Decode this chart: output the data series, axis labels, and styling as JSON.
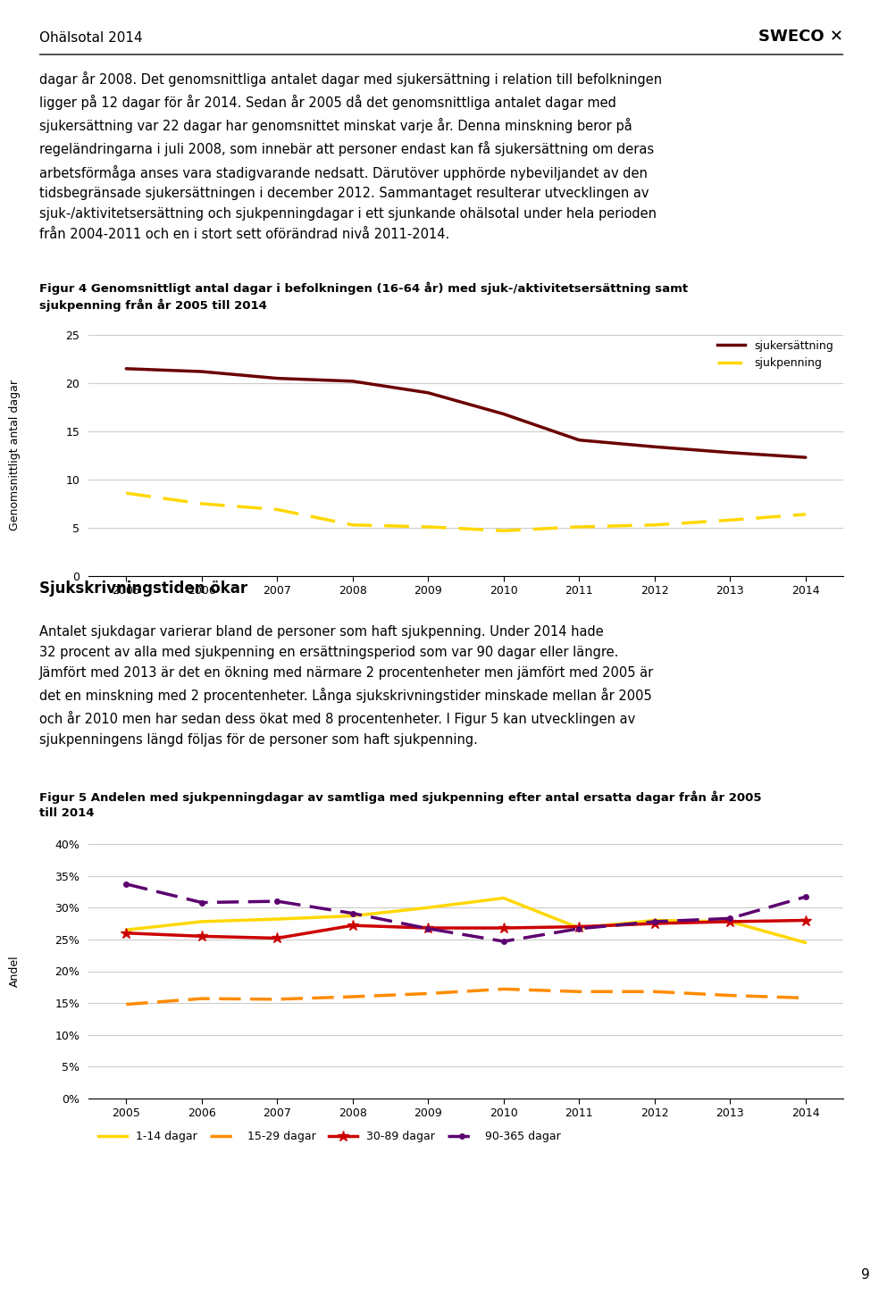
{
  "page_title": "Ohälsotal 2014",
  "intro_text_lines": [
    "dagar år 2008. Det genomsnittliga antalet dagar med sjukersättning i relation till befolkningen",
    "ligger på 12 dagar för år 2014. Sedan år 2005 då det genomsnittliga antalet dagar med",
    "sjukersättning var 22 dagar har genomsnittet minskat varje år. Denna minskning beror på",
    "regeländringarna i juli 2008, som innebär att personer endast kan få sjukersättning om deras",
    "arbetsförmåga anses vara stadigvarande nedsatt. Därutöver upphörde nybeviljandet av den",
    "tidsbegränsade sjukersättningen i december 2012. Sammantaget resulterar utvecklingen av",
    "sjuk-/aktivitetsersättning och sjukpenningdagar i ett sjunkande ohälsotal under hela perioden",
    "från 2004-2011 och en i stort sett oförändrad nivå 2011-2014."
  ],
  "fig4_title": "Figur 4 Genomsnittligt antal dagar i befolkningen (16-64 år) med sjuk-/aktivitetsersättning samt\nsjukpenning från år 2005 till 2014",
  "fig4_ylabel": "Genomsnittligt antal dagar",
  "fig4_years": [
    2005,
    2006,
    2007,
    2008,
    2009,
    2010,
    2011,
    2012,
    2013,
    2014
  ],
  "fig4_sjukersattning": [
    21.5,
    21.2,
    20.5,
    20.2,
    19.0,
    16.8,
    14.1,
    13.4,
    12.8,
    12.3
  ],
  "fig4_sjukpenning": [
    8.6,
    7.5,
    6.9,
    5.3,
    5.1,
    4.7,
    5.1,
    5.3,
    5.8,
    6.4
  ],
  "fig4_ylim": [
    0,
    25
  ],
  "fig4_yticks": [
    0,
    5,
    10,
    15,
    20,
    25
  ],
  "fig4_color_sjukersattning": "#6B0000",
  "fig4_color_sjukpenning": "#FFD700",
  "section_title": "Sjukskrivningstiden ökar",
  "section_text_lines": [
    "Antalet sjukdagar varierar bland de personer som haft sjukpenning. Under 2014 hade",
    "32 procent av alla med sjukpenning en ersättningsperiod som var 90 dagar eller längre.",
    "Jämfört med 2013 är det en ökning med närmare 2 procentenheter men jämfört med 2005 är",
    "det en minskning med 2 procentenheter. Långa sjukskrivningstider minskade mellan år 2005",
    "och år 2010 men har sedan dess ökat med 8 procentenheter. I Figur 5 kan utvecklingen av",
    "sjukpenningens längd följas för de personer som haft sjukpenning."
  ],
  "fig5_title": "Figur 5 Andelen med sjukpenningdagar av samtliga med sjukpenning efter antal ersatta dagar från år 2005\ntill 2014",
  "fig5_ylabel": "Andel",
  "fig5_years": [
    2005,
    2006,
    2007,
    2008,
    2009,
    2010,
    2011,
    2012,
    2013,
    2014
  ],
  "fig5_1_14": [
    0.265,
    0.278,
    0.282,
    0.287,
    0.3,
    0.315,
    0.268,
    0.28,
    0.278,
    0.245
  ],
  "fig5_15_29": [
    0.148,
    0.157,
    0.156,
    0.16,
    0.165,
    0.172,
    0.168,
    0.168,
    0.162,
    0.158
  ],
  "fig5_30_89": [
    0.26,
    0.255,
    0.252,
    0.272,
    0.268,
    0.268,
    0.27,
    0.275,
    0.278,
    0.28
  ],
  "fig5_90_365": [
    0.337,
    0.308,
    0.31,
    0.291,
    0.267,
    0.247,
    0.267,
    0.278,
    0.283,
    0.317
  ],
  "fig5_ylim": [
    0.0,
    0.4
  ],
  "fig5_yticks": [
    0.0,
    0.05,
    0.1,
    0.15,
    0.2,
    0.25,
    0.3,
    0.35,
    0.4
  ],
  "fig5_color_1_14": "#FFD700",
  "fig5_color_15_29": "#FF8C00",
  "fig5_color_30_89": "#CC0000",
  "fig5_color_90_365": "#5C0070",
  "page_number": "9",
  "background_color": "#ffffff",
  "text_color": "#000000"
}
